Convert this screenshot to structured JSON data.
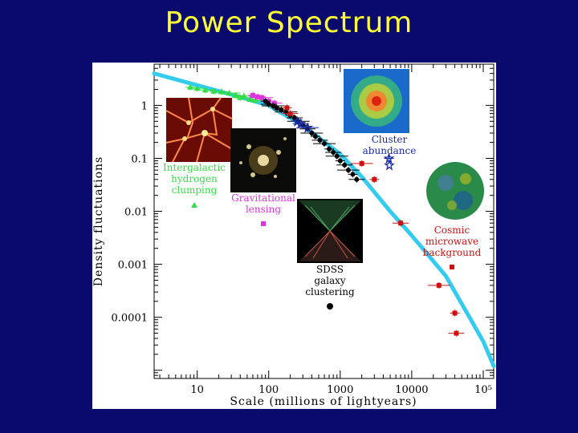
{
  "slide": {
    "title": "Power Spectrum"
  },
  "colors": {
    "background": "#0a0a6e",
    "title": "#ffff33",
    "fit_line": "#33ccee",
    "lyman": "#33dd44",
    "lensing": "#dd33dd",
    "sdss": "#000000",
    "cluster": "#1a2aa0",
    "cmb": "#cc1111"
  },
  "chart_data": {
    "type": "scatter",
    "title": "",
    "xlabel": "Scale  (millions of lightyears)",
    "ylabel": "Density  fluctuations",
    "x_scale": "log",
    "y_scale": "log",
    "xlim": [
      2.5,
      140000
    ],
    "ylim": [
      7e-06,
      6
    ],
    "x_ticks": [
      {
        "value": 10,
        "label": "10"
      },
      {
        "value": 100,
        "label": "100"
      },
      {
        "value": 1000,
        "label": "1000"
      },
      {
        "value": 10000,
        "label": "10000"
      },
      {
        "value": 100000,
        "label": "10⁵"
      }
    ],
    "y_ticks": [
      {
        "value": 1,
        "label": "1"
      },
      {
        "value": 0.1,
        "label": "0.1"
      },
      {
        "value": 0.01,
        "label": "0.01"
      },
      {
        "value": 0.001,
        "label": "0.001"
      },
      {
        "value": 0.0001,
        "label": "0.0001"
      }
    ],
    "fit_curve": {
      "x": [
        2.5,
        10,
        30,
        100,
        300,
        1000,
        2000,
        5000,
        10000,
        30000,
        100000,
        140000
      ],
      "y": [
        4.0,
        2.4,
        1.6,
        1.0,
        0.42,
        0.12,
        0.045,
        0.01,
        0.0035,
        0.0006,
        3.5e-05,
        1.2e-05
      ]
    },
    "series": [
      {
        "name": "Intergalactic hydrogen clumping",
        "marker": "triangle",
        "color_key": "lyman",
        "x": [
          8,
          10,
          13,
          17,
          22,
          28,
          35,
          40,
          45,
          55,
          65
        ],
        "y": [
          2.2,
          2.1,
          1.95,
          1.85,
          1.8,
          1.7,
          1.55,
          1.4,
          1.5,
          1.3,
          1.25
        ]
      },
      {
        "name": "Gravitational lensing",
        "marker": "square",
        "color_key": "lensing",
        "x": [
          60,
          70,
          80,
          100,
          120
        ],
        "y": [
          1.55,
          1.45,
          1.4,
          1.2,
          1.1
        ]
      },
      {
        "name": "SDSS galaxy clustering",
        "marker": "circle",
        "color_key": "sdss",
        "x": [
          90,
          100,
          115,
          130,
          150,
          175,
          200,
          230,
          260,
          300,
          350,
          400,
          450,
          520,
          600,
          700,
          800,
          900,
          1000,
          1150,
          1300,
          1500,
          1700
        ],
        "y": [
          1.2,
          1.05,
          0.98,
          0.9,
          0.82,
          0.75,
          0.65,
          0.58,
          0.5,
          0.42,
          0.36,
          0.3,
          0.26,
          0.22,
          0.19,
          0.15,
          0.13,
          0.11,
          0.09,
          0.075,
          0.06,
          0.05,
          0.04
        ]
      },
      {
        "name": "Cluster abundance",
        "marker": "star",
        "color_key": "cluster",
        "x": [
          250,
          280,
          350,
          4800
        ],
        "y": [
          0.5,
          0.45,
          0.38,
          0.1
        ]
      },
      {
        "name": "Cosmic microwave background",
        "marker": "square",
        "color_key": "cmb",
        "x": [
          180,
          200,
          2000,
          3000,
          7000,
          24000,
          40000,
          42000
        ],
        "y": [
          0.9,
          0.7,
          0.08,
          0.04,
          0.006,
          0.0004,
          0.00012,
          5e-05
        ]
      }
    ],
    "annotations": {
      "lyman": [
        "Intergalactic",
        "hydrogen",
        "clumping"
      ],
      "lensing": [
        "Gravitational",
        "lensing"
      ],
      "sdss": [
        "SDSS",
        "galaxy",
        "clustering"
      ],
      "cluster": [
        "Cluster",
        "abundance"
      ],
      "cmb": [
        "Cosmic",
        "microwave",
        "background"
      ]
    }
  }
}
